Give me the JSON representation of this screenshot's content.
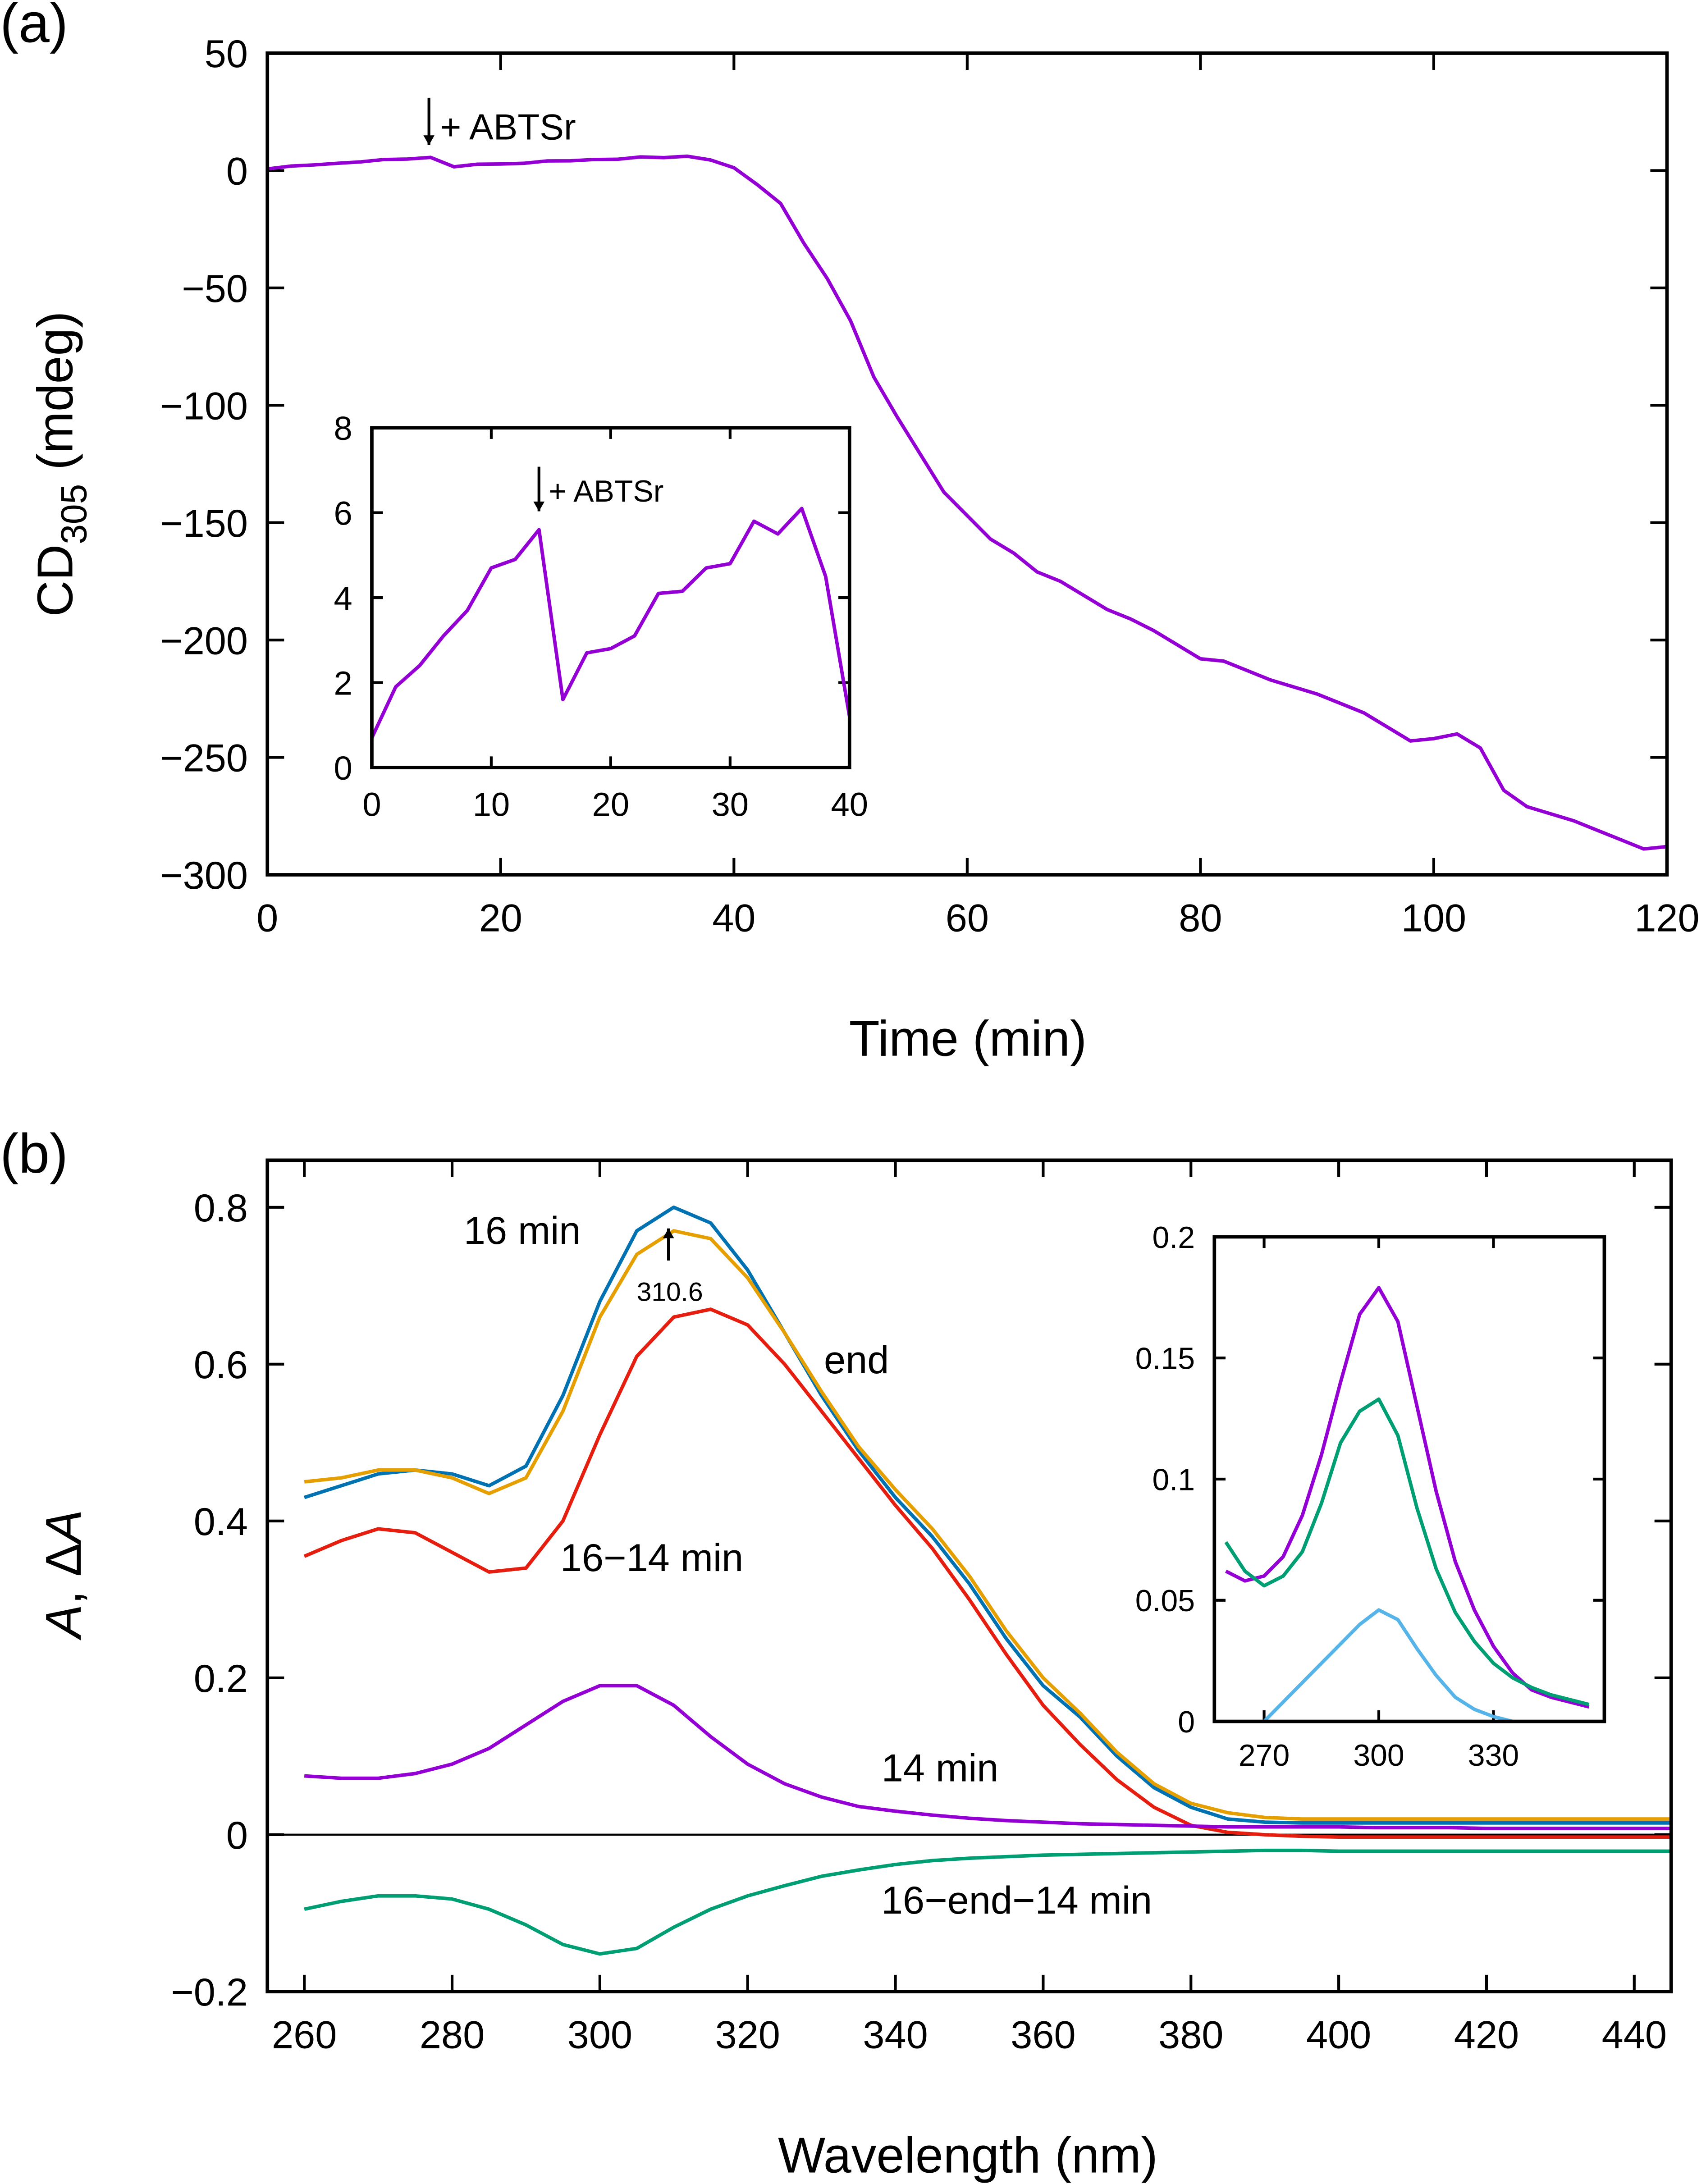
{
  "chart_data": [
    {
      "type": "line",
      "panel_label": "(a)",
      "xlabel": "Time (min)",
      "ylabel": [
        "CD",
        "305",
        " (mdeg)"
      ],
      "annotations": [
        "+ ABTSr"
      ],
      "xlim": [
        0,
        120
      ],
      "xticks": [
        0,
        20,
        40,
        60,
        80,
        100,
        120
      ],
      "ylim": [
        -300,
        50
      ],
      "yticks": [
        50,
        0,
        {
          "value": -50,
          "label": "−50"
        },
        {
          "value": -100,
          "label": "−100"
        },
        {
          "value": -150,
          "label": "−150"
        },
        {
          "value": -200,
          "label": "−200"
        },
        {
          "value": -250,
          "label": "−250"
        },
        {
          "value": -300,
          "label": "−300"
        }
      ],
      "x": [
        0,
        2,
        4,
        6,
        8,
        10,
        12,
        14,
        16,
        18,
        20,
        22,
        24,
        26,
        28,
        30,
        32,
        34,
        36,
        38,
        40,
        42,
        44,
        46,
        48,
        50,
        52,
        54,
        56,
        58,
        60,
        62,
        64,
        66,
        68,
        70,
        72,
        74,
        76,
        78,
        80,
        82,
        84,
        86,
        88,
        90,
        92,
        94,
        96,
        98,
        100,
        102,
        104,
        106,
        108,
        110,
        112,
        114,
        116,
        118,
        120
      ],
      "series": [
        {
          "color": "#9400d3",
          "values": [
            0.7,
            1.9,
            2.4,
            3.1,
            3.7,
            4.7,
            4.9,
            5.6,
            1.6,
            2.7,
            2.8,
            3.1,
            4.1,
            4.15,
            4.7,
            4.8,
            5.8,
            5.5,
            6.1,
            4.5,
            1.2,
            -6,
            -14,
            -31,
            -46,
            -64,
            -88,
            -105,
            -121,
            -137,
            -147,
            -157,
            -163,
            -171,
            -175,
            -181,
            -187,
            -191,
            -196,
            -202,
            -208,
            -209,
            -213,
            -217,
            -220,
            -223,
            -227,
            -231,
            -237,
            -243,
            -242,
            -240,
            -246,
            -264,
            -271,
            -274,
            -277,
            -281,
            -285,
            -289,
            -288
          ]
        }
      ]
    },
    {
      "type": "line",
      "annotations": [
        "+ ABTSr"
      ],
      "xlim": [
        0,
        40
      ],
      "xticks": [
        0,
        10,
        20,
        30,
        40
      ],
      "ylim": [
        0,
        8
      ],
      "yticks": [
        0,
        2,
        4,
        6,
        8
      ],
      "x": [
        0,
        2,
        4,
        6,
        8,
        10,
        12,
        14,
        16,
        18,
        20,
        22,
        24,
        26,
        28,
        30,
        32,
        34,
        36,
        38,
        40
      ],
      "series": [
        {
          "color": "#9400d3",
          "values": [
            0.7,
            1.9,
            2.4,
            3.1,
            3.7,
            4.7,
            4.9,
            5.6,
            1.6,
            2.7,
            2.8,
            3.1,
            4.1,
            4.15,
            4.7,
            4.8,
            5.8,
            5.5,
            6.1,
            4.5,
            1.2
          ]
        }
      ]
    },
    {
      "type": "line",
      "panel_label": "(b)",
      "xlabel": "Wavelength (nm)",
      "ylabel": [
        "A",
        ", Δ",
        "A"
      ],
      "annotations": [
        "310.6"
      ],
      "zero_line": true,
      "xlim": [
        255,
        445
      ],
      "xticks": [
        260,
        280,
        300,
        320,
        340,
        360,
        380,
        400,
        420,
        440
      ],
      "ylim": [
        -0.2,
        0.86
      ],
      "yticks": [
        0.8,
        0.6,
        0.4,
        0.2,
        0,
        {
          "value": -0.2,
          "label": "−0.2"
        }
      ],
      "x": [
        260,
        265,
        270,
        275,
        280,
        285,
        290,
        295,
        300,
        305,
        310,
        315,
        320,
        325,
        330,
        335,
        340,
        345,
        350,
        355,
        360,
        365,
        370,
        375,
        380,
        385,
        390,
        395,
        400,
        405,
        410,
        415,
        420,
        425,
        430,
        435,
        440,
        445
      ],
      "series": [
        {
          "name": "16 min",
          "color": "#0072b2",
          "values": [
            0.43,
            0.445,
            0.46,
            0.465,
            0.46,
            0.445,
            0.47,
            0.56,
            0.68,
            0.77,
            0.8,
            0.78,
            0.72,
            0.64,
            0.56,
            0.49,
            0.43,
            0.38,
            0.32,
            0.25,
            0.19,
            0.15,
            0.1,
            0.06,
            0.035,
            0.02,
            0.016,
            0.015,
            0.015,
            0.015,
            0.015,
            0.015,
            0.015,
            0.015,
            0.015,
            0.015,
            0.015,
            0.015
          ]
        },
        {
          "name": "end",
          "color": "#e69f00",
          "values": [
            0.45,
            0.455,
            0.465,
            0.465,
            0.455,
            0.435,
            0.455,
            0.54,
            0.66,
            0.74,
            0.77,
            0.76,
            0.71,
            0.64,
            0.565,
            0.495,
            0.44,
            0.39,
            0.33,
            0.26,
            0.2,
            0.155,
            0.105,
            0.065,
            0.04,
            0.028,
            0.022,
            0.02,
            0.02,
            0.02,
            0.02,
            0.02,
            0.02,
            0.02,
            0.02,
            0.02,
            0.02,
            0.02
          ]
        },
        {
          "name": "16−14 min",
          "color": "#e51e10",
          "values": [
            0.355,
            0.375,
            0.39,
            0.385,
            0.36,
            0.335,
            0.34,
            0.4,
            0.51,
            0.61,
            0.66,
            0.67,
            0.65,
            0.6,
            0.54,
            0.48,
            0.42,
            0.365,
            0.3,
            0.23,
            0.165,
            0.115,
            0.07,
            0.035,
            0.012,
            0.003,
            0,
            -0.002,
            -0.003,
            -0.003,
            -0.003,
            -0.003,
            -0.003,
            -0.003,
            -0.003,
            -0.003,
            -0.003,
            -0.003
          ]
        },
        {
          "name": "14 min",
          "color": "#9400d3",
          "values": [
            0.075,
            0.072,
            0.072,
            0.078,
            0.09,
            0.11,
            0.14,
            0.17,
            0.19,
            0.19,
            0.165,
            0.125,
            0.09,
            0.065,
            0.048,
            0.036,
            0.03,
            0.025,
            0.021,
            0.018,
            0.016,
            0.014,
            0.013,
            0.012,
            0.011,
            0.01,
            0.01,
            0.01,
            0.01,
            0.009,
            0.009,
            0.009,
            0.008,
            0.008,
            0.008,
            0.008,
            0.008,
            0.008
          ]
        },
        {
          "name": "16−end−14 min",
          "color": "#009e73",
          "values": [
            -0.095,
            -0.085,
            -0.078,
            -0.078,
            -0.082,
            -0.095,
            -0.115,
            -0.14,
            -0.152,
            -0.145,
            -0.118,
            -0.095,
            -0.078,
            -0.065,
            -0.053,
            -0.045,
            -0.038,
            -0.033,
            -0.03,
            -0.028,
            -0.026,
            -0.025,
            -0.024,
            -0.023,
            -0.022,
            -0.021,
            -0.02,
            -0.02,
            -0.021,
            -0.021,
            -0.021,
            -0.021,
            -0.021,
            -0.021,
            -0.021,
            -0.021,
            -0.021,
            -0.021
          ]
        }
      ]
    },
    {
      "type": "line",
      "xlim": [
        257,
        359
      ],
      "xticks": [
        270,
        300,
        330
      ],
      "ylim": [
        0,
        0.2
      ],
      "yticks": [
        0,
        0.05,
        0.1,
        0.15,
        0.2
      ],
      "x": [
        260,
        265,
        270,
        275,
        280,
        285,
        290,
        295,
        300,
        305,
        310,
        315,
        320,
        325,
        330,
        335,
        340,
        345,
        350,
        355
      ],
      "series": [
        {
          "color": "#9400d3",
          "values": [
            0.062,
            0.058,
            0.06,
            0.068,
            0.085,
            0.11,
            0.14,
            0.168,
            0.179,
            0.165,
            0.13,
            0.095,
            0.066,
            0.046,
            0.031,
            0.02,
            0.013,
            0.01,
            0.008,
            0.006
          ]
        },
        {
          "color": "#009e73",
          "values": [
            0.074,
            0.062,
            0.056,
            0.06,
            0.07,
            0.09,
            0.115,
            0.128,
            0.133,
            0.118,
            0.088,
            0.063,
            0.045,
            0.033,
            0.024,
            0.018,
            0.014,
            0.011,
            0.009,
            0.007
          ]
        },
        {
          "color": "#56b4e9",
          "values": [
            null,
            null,
            0,
            0.008,
            0.016,
            0.024,
            0.032,
            0.04,
            0.046,
            0.042,
            0.03,
            0.019,
            0.01,
            0.005,
            0.002,
            0,
            null,
            null,
            null,
            null
          ]
        }
      ]
    }
  ]
}
